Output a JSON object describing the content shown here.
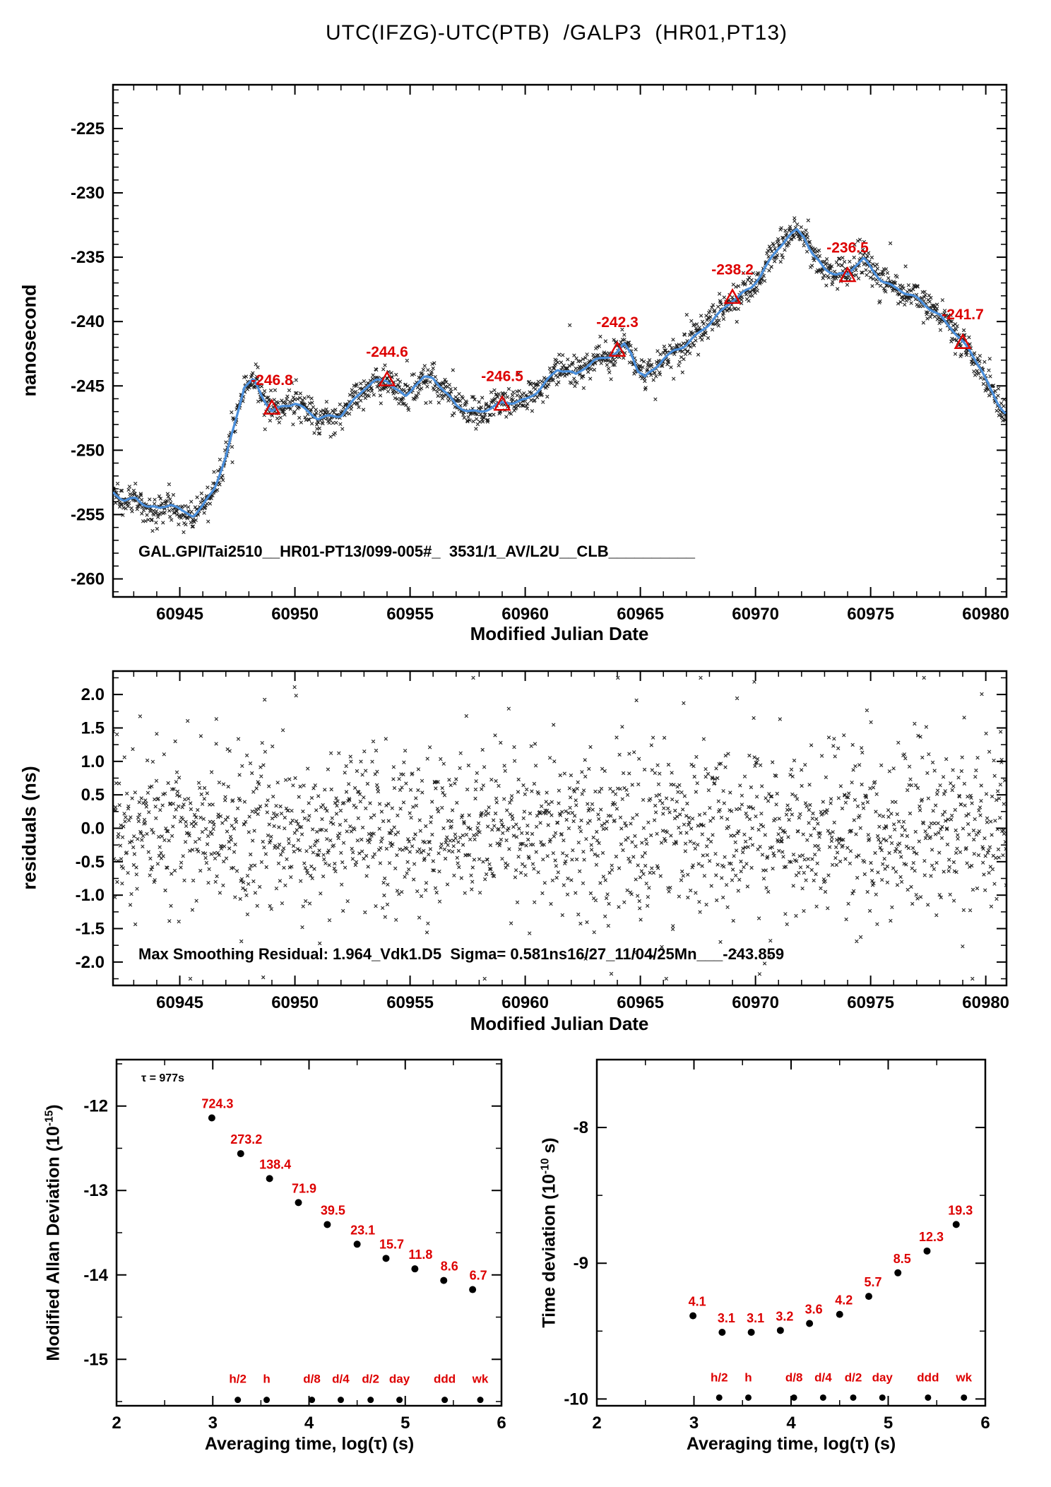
{
  "title": "UTC(IFZG)-UTC(PTB)  /GALP3  (HR01,PT13)",
  "colors": {
    "red": "#dd0000",
    "blue": "#4a8fdc",
    "black": "#000000"
  },
  "chart_data": [
    {
      "id": "timeseries",
      "type": "scatter+line",
      "ylabel": "nanosecond",
      "xlabel": "Modified Julian Date",
      "annotation": "GAL.GPI/Tai2510__HR01-PT13/099-005#_  3531/1_AV/L2U__CLB__________",
      "xlim": [
        60942.1,
        60980.9
      ],
      "ylim": [
        -261.4,
        -221.6
      ],
      "xticks": [
        60945,
        60950,
        60955,
        60960,
        60965,
        60970,
        60975,
        60980
      ],
      "yticks": [
        -260,
        -255,
        -250,
        -245,
        -240,
        -235,
        -230,
        -225
      ],
      "noise_sigma": 0.55,
      "n_scatter": 1800,
      "curve_knots": [
        [
          60942.1,
          -253.4
        ],
        [
          60942.6,
          -253.9
        ],
        [
          60943.1,
          -253.6
        ],
        [
          60943.6,
          -254.2
        ],
        [
          60944.1,
          -254.6
        ],
        [
          60944.6,
          -254.3
        ],
        [
          60945.1,
          -254.9
        ],
        [
          60945.6,
          -255.0
        ],
        [
          60946.0,
          -254.2
        ],
        [
          60946.5,
          -252.8
        ],
        [
          60947.0,
          -250.6
        ],
        [
          60947.4,
          -248.0
        ],
        [
          60947.8,
          -245.2
        ],
        [
          60948.2,
          -244.6
        ],
        [
          60948.6,
          -245.8
        ],
        [
          60949.0,
          -246.8
        ],
        [
          60949.5,
          -246.5
        ],
        [
          60950.0,
          -246.4
        ],
        [
          60950.5,
          -247.1
        ],
        [
          60951.0,
          -247.6
        ],
        [
          60951.5,
          -247.3
        ],
        [
          60952.0,
          -247.1
        ],
        [
          60952.5,
          -246.2
        ],
        [
          60953.0,
          -245.3
        ],
        [
          60953.5,
          -244.8
        ],
        [
          60954.0,
          -244.6
        ],
        [
          60954.4,
          -245.2
        ],
        [
          60954.8,
          -245.7
        ],
        [
          60955.2,
          -244.8
        ],
        [
          60955.6,
          -244.4
        ],
        [
          60956.0,
          -244.5
        ],
        [
          60956.5,
          -245.6
        ],
        [
          60957.0,
          -246.5
        ],
        [
          60957.5,
          -246.8
        ],
        [
          60958.0,
          -246.9
        ],
        [
          60958.5,
          -246.7
        ],
        [
          60959.0,
          -246.5
        ],
        [
          60959.5,
          -246.4
        ],
        [
          60960.0,
          -246.1
        ],
        [
          60960.5,
          -245.3
        ],
        [
          60961.0,
          -244.4
        ],
        [
          60961.4,
          -243.7
        ],
        [
          60961.8,
          -244.0
        ],
        [
          60962.2,
          -244.3
        ],
        [
          60962.6,
          -243.6
        ],
        [
          60963.0,
          -243.0
        ],
        [
          60963.5,
          -242.6
        ],
        [
          60964.0,
          -242.3
        ],
        [
          60964.3,
          -241.8
        ],
        [
          60964.6,
          -242.5
        ],
        [
          60964.9,
          -244.0
        ],
        [
          60965.2,
          -244.5
        ],
        [
          60965.6,
          -243.7
        ],
        [
          60966.0,
          -242.8
        ],
        [
          60966.5,
          -242.1
        ],
        [
          60967.0,
          -241.7
        ],
        [
          60967.5,
          -241.1
        ],
        [
          60968.0,
          -240.3
        ],
        [
          60968.5,
          -239.3
        ],
        [
          60969.0,
          -238.2
        ],
        [
          60969.4,
          -237.7
        ],
        [
          60969.8,
          -237.3
        ],
        [
          60970.2,
          -236.5
        ],
        [
          60970.6,
          -235.5
        ],
        [
          60971.0,
          -234.4
        ],
        [
          60971.4,
          -233.5
        ],
        [
          60971.8,
          -232.8
        ],
        [
          60972.1,
          -233.2
        ],
        [
          60972.5,
          -234.7
        ],
        [
          60973.0,
          -235.9
        ],
        [
          60973.5,
          -236.5
        ],
        [
          60974.0,
          -236.5
        ],
        [
          60974.3,
          -235.7
        ],
        [
          60974.7,
          -235.0
        ],
        [
          60975.1,
          -235.9
        ],
        [
          60975.5,
          -236.7
        ],
        [
          60976.0,
          -237.4
        ],
        [
          60976.5,
          -237.9
        ],
        [
          60977.0,
          -238.3
        ],
        [
          60977.5,
          -238.8
        ],
        [
          60978.0,
          -239.4
        ],
        [
          60978.5,
          -240.4
        ],
        [
          60979.0,
          -241.7
        ],
        [
          60979.4,
          -242.7
        ],
        [
          60979.8,
          -243.8
        ],
        [
          60980.2,
          -245.3
        ],
        [
          60980.5,
          -246.2
        ],
        [
          60980.9,
          -247.0
        ]
      ],
      "markers": [
        {
          "x": 60949,
          "y": -246.8,
          "label": "-246.8"
        },
        {
          "x": 60954,
          "y": -244.6,
          "label": "-244.6"
        },
        {
          "x": 60959,
          "y": -246.5,
          "label": "-246.5"
        },
        {
          "x": 60964,
          "y": -242.3,
          "label": "-242.3"
        },
        {
          "x": 60969,
          "y": -238.2,
          "label": "-238.2"
        },
        {
          "x": 60974,
          "y": -236.5,
          "label": "-236.5"
        },
        {
          "x": 60979,
          "y": -241.7,
          "label": "-241.7"
        }
      ]
    },
    {
      "id": "residuals",
      "type": "scatter",
      "ylabel": "residuals (ns)",
      "xlabel": "Modified Julian Date",
      "annotation": "Max Smoothing Residual: 1.964_Vdk1.D5  Sigma= 0.581ns16/27_11/04/25Mn___-243.859",
      "xlim": [
        60942.1,
        60980.9
      ],
      "ylim": [
        -2.35,
        2.35
      ],
      "xticks": [
        60945,
        60950,
        60955,
        60960,
        60965,
        60970,
        60975,
        60980
      ],
      "yticks": [
        2.0,
        1.5,
        1.0,
        0.5,
        0.0,
        -0.5,
        -1.0,
        -1.5,
        -2.0
      ],
      "sigma": 0.581,
      "n_scatter": 1800
    },
    {
      "id": "mdev",
      "type": "scatter",
      "ylabel_pre": "Modified Allan Deviation (10",
      "ylabel_sup": "-15",
      "ylabel_post": ")",
      "xlabel": "Averaging time, log(τ) (s)",
      "tau_note": "τ = 977s",
      "xlim": [
        2,
        6
      ],
      "ylim": [
        -15.55,
        -11.45
      ],
      "xticks": [
        2,
        3,
        4,
        5,
        6
      ],
      "yticks": [
        -12,
        -13,
        -14,
        -15
      ],
      "unit_exp": -15,
      "logtau": [
        2.99,
        3.29,
        3.59,
        3.89,
        4.19,
        4.5,
        4.8,
        5.1,
        5.4,
        5.7
      ],
      "values": [
        724.3,
        273.2,
        138.4,
        71.9,
        39.5,
        23.1,
        15.7,
        11.8,
        8.6,
        6.7
      ],
      "durations": {
        "labels": [
          "h/2",
          "h",
          "d/8",
          "d/4",
          "d/2",
          "day",
          "ddd",
          "wk"
        ],
        "logtau": [
          3.26,
          3.56,
          4.03,
          4.33,
          4.64,
          4.94,
          5.41,
          5.78
        ],
        "dot_y": -15.48,
        "label_y": -15.28
      }
    },
    {
      "id": "tdev",
      "type": "scatter",
      "ylabel_pre": "Time deviation (10",
      "ylabel_sup": "-10",
      "ylabel_post": " s)",
      "xlabel": "Averaging time, log(τ) (s)",
      "xlim": [
        2,
        6
      ],
      "ylim": [
        -10.05,
        -7.5
      ],
      "xticks": [
        2,
        3,
        4,
        5,
        6
      ],
      "yticks": [
        -8,
        -9,
        -10
      ],
      "unit_exp": -10,
      "logtau": [
        2.99,
        3.29,
        3.59,
        3.89,
        4.19,
        4.5,
        4.8,
        5.1,
        5.4,
        5.7
      ],
      "values": [
        4.1,
        3.1,
        3.1,
        3.2,
        3.6,
        4.2,
        5.7,
        8.5,
        12.3,
        19.3
      ],
      "durations": {
        "labels": [
          "h/2",
          "h",
          "d/8",
          "d/4",
          "d/2",
          "day",
          "ddd",
          "wk"
        ],
        "logtau": [
          3.26,
          3.56,
          4.03,
          4.33,
          4.64,
          4.94,
          5.41,
          5.78
        ],
        "dot_y": -9.99,
        "label_y": -9.87
      }
    }
  ]
}
